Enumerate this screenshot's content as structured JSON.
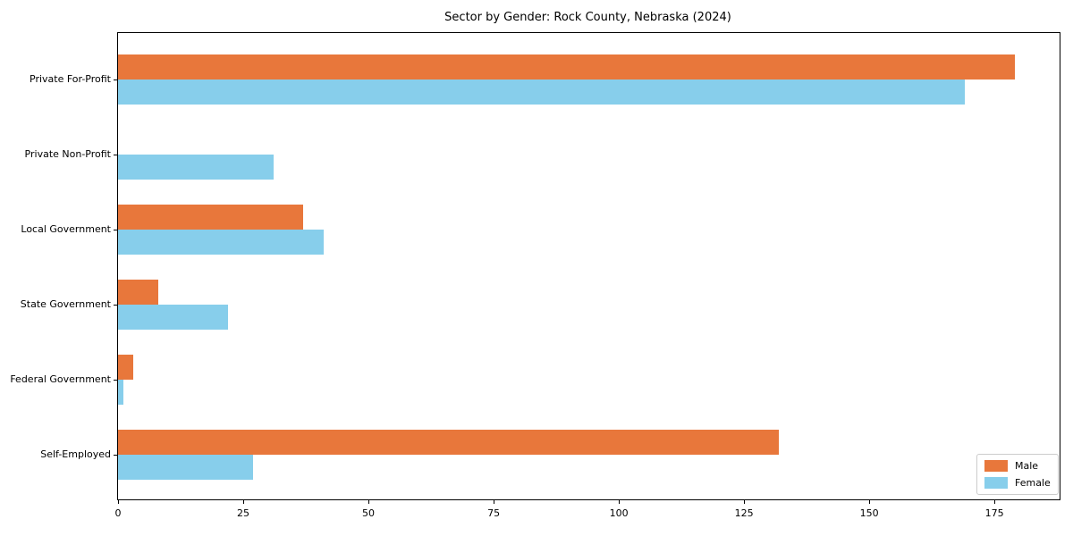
{
  "title": "Sector by Gender: Rock County, Nebraska (2024)",
  "colors": {
    "male": "#e8773b",
    "female": "#87ceeb",
    "axis": "#000000",
    "text": "#000000",
    "legend_border": "#cccccc",
    "background": "#ffffff"
  },
  "legend": {
    "position": "lower right",
    "items": [
      {
        "label": "Male",
        "color": "#e8773b"
      },
      {
        "label": "Female",
        "color": "#87ceeb"
      }
    ]
  },
  "chart_data": {
    "type": "bar",
    "orientation": "horizontal",
    "title": "Sector by Gender: Rock County, Nebraska (2024)",
    "xlabel": "",
    "ylabel": "",
    "categories": [
      "Private For-Profit",
      "Private Non-Profit",
      "Local Government",
      "State Government",
      "Federal Government",
      "Self-Employed"
    ],
    "series": [
      {
        "name": "Male",
        "color": "#e8773b",
        "values": [
          179,
          0,
          37,
          8,
          3,
          132
        ]
      },
      {
        "name": "Female",
        "color": "#87ceeb",
        "values": [
          169,
          31,
          41,
          22,
          1,
          27
        ]
      }
    ],
    "xlim": [
      0,
      188
    ],
    "xticks": [
      0,
      25,
      50,
      75,
      100,
      125,
      150,
      175
    ],
    "grid": false,
    "legend_position": "lower right"
  }
}
